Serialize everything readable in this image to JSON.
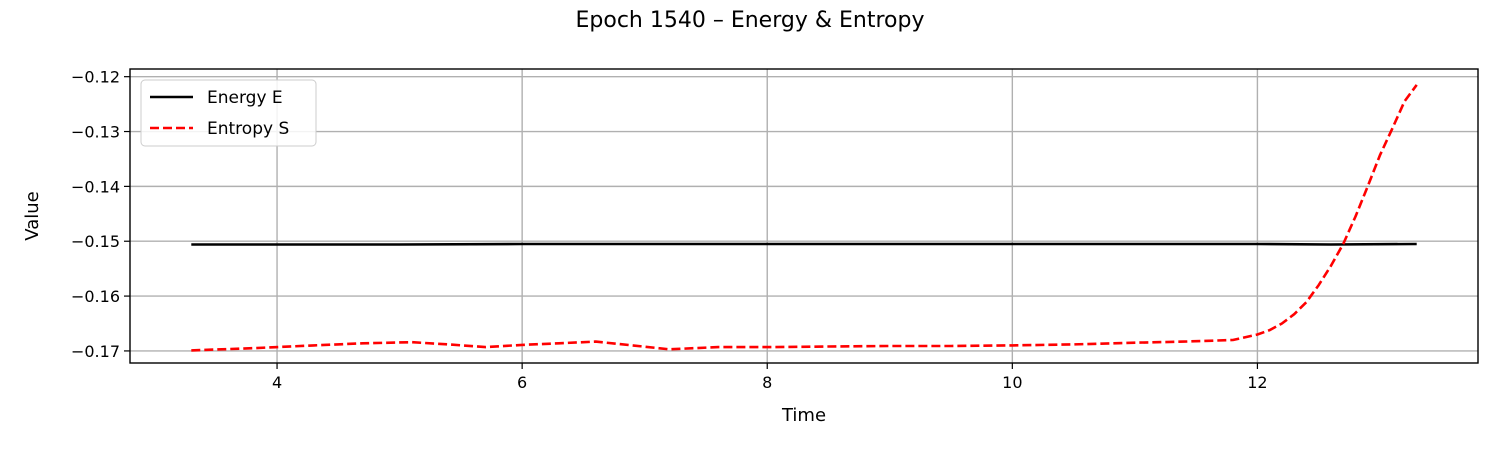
{
  "chart_data": {
    "type": "line",
    "title": "Epoch 1540 – Energy & Entropy",
    "xlabel": "Time",
    "ylabel": "Value",
    "xlim": [
      2.8,
      13.8
    ],
    "ylim": [
      -0.1722,
      -0.1186
    ],
    "xticks": [
      4,
      6,
      8,
      10,
      12
    ],
    "xtick_labels": [
      "4",
      "6",
      "8",
      "10",
      "12"
    ],
    "yticks": [
      -0.17,
      -0.16,
      -0.15,
      -0.14,
      -0.13,
      -0.12
    ],
    "ytick_labels": [
      "−0.17",
      "−0.16",
      "−0.15",
      "−0.14",
      "−0.13",
      "−0.12"
    ],
    "grid": true,
    "legend_position": "top-left",
    "series": [
      {
        "name": "Energy E",
        "color": "#000000",
        "style": "solid",
        "x": [
          3.3,
          4.0,
          5.0,
          6.0,
          7.0,
          8.0,
          9.0,
          10.0,
          11.0,
          12.0,
          12.6,
          13.3
        ],
        "y": [
          -0.1506,
          -0.1506,
          -0.1506,
          -0.1505,
          -0.1505,
          -0.1505,
          -0.1505,
          -0.1505,
          -0.1505,
          -0.1505,
          -0.1506,
          -0.1505
        ]
      },
      {
        "name": "Entropy S",
        "color": "#ff0000",
        "style": "dashed",
        "x": [
          3.3,
          3.8,
          4.3,
          4.7,
          5.1,
          5.4,
          5.7,
          6.0,
          6.3,
          6.6,
          6.9,
          7.2,
          7.6,
          8.0,
          8.5,
          9.0,
          9.5,
          10.0,
          10.5,
          11.0,
          11.4,
          11.8,
          12.0,
          12.1,
          12.2,
          12.3,
          12.4,
          12.5,
          12.6,
          12.7,
          12.8,
          12.9,
          13.0,
          13.1,
          13.2,
          13.3
        ],
        "y": [
          -0.1699,
          -0.1695,
          -0.169,
          -0.1686,
          -0.1684,
          -0.1688,
          -0.1693,
          -0.1689,
          -0.1686,
          -0.1683,
          -0.169,
          -0.1697,
          -0.1693,
          -0.1693,
          -0.1692,
          -0.1691,
          -0.1691,
          -0.169,
          -0.1688,
          -0.1685,
          -0.1683,
          -0.168,
          -0.167,
          -0.1662,
          -0.165,
          -0.1633,
          -0.1611,
          -0.158,
          -0.1545,
          -0.1505,
          -0.1455,
          -0.14,
          -0.1343,
          -0.1295,
          -0.1245,
          -0.1215
        ]
      }
    ]
  }
}
